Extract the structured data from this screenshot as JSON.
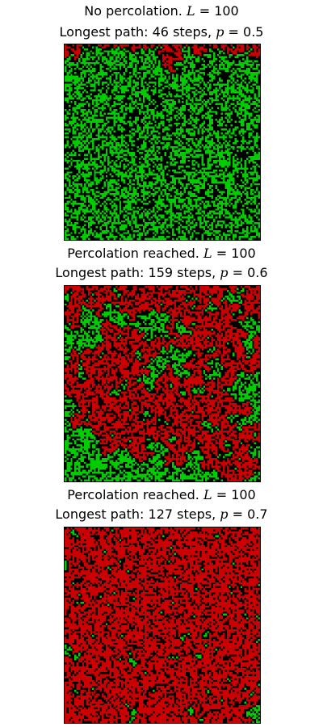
{
  "colors": {
    "empty": "#000000",
    "open": "#00cc00",
    "cluster": "#cc0000"
  },
  "chart_data": [
    {
      "type": "heatmap",
      "title_parts": {
        "status": "No percolation.",
        "L_label": "L",
        "L_value": "= 100",
        "path_prefix": "Longest path: 46 steps,",
        "p_label": "p",
        "p_value": "= 0.5"
      },
      "L": 100,
      "p": 0.5,
      "percolated": false,
      "longest_path_steps": 46
    },
    {
      "type": "heatmap",
      "title_parts": {
        "status": "Percolation reached.",
        "L_label": "L",
        "L_value": "= 100",
        "path_prefix": "Longest path: 159 steps,",
        "p_label": "p",
        "p_value": "= 0.6"
      },
      "L": 100,
      "p": 0.6,
      "percolated": true,
      "longest_path_steps": 159
    },
    {
      "type": "heatmap",
      "title_parts": {
        "status": "Percolation reached.",
        "L_label": "L",
        "L_value": "= 100",
        "path_prefix": "Longest path: 127 steps,",
        "p_label": "p",
        "p_value": "= 0.7"
      },
      "L": 100,
      "p": 0.7,
      "percolated": true,
      "longest_path_steps": 127
    }
  ]
}
